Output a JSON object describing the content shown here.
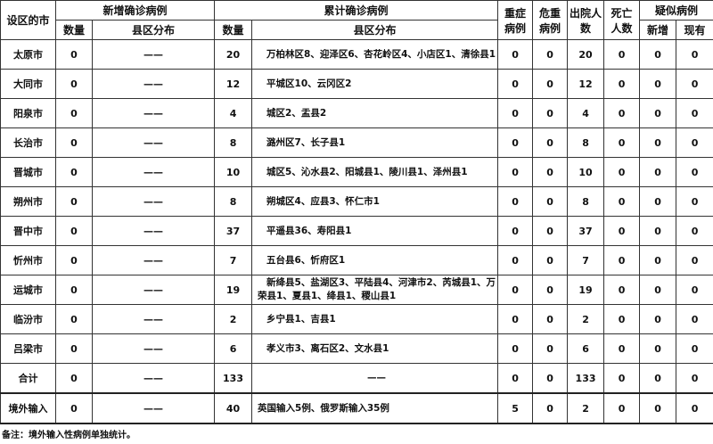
{
  "headers": {
    "city": "设区的市",
    "new_confirmed": "新增确诊病例",
    "cumulative_confirmed": "累计确诊病例",
    "count": "数量",
    "distribution": "县区分布",
    "severe": "重症病例",
    "critical": "危重病例",
    "discharged": "出院人数",
    "deaths": "死亡人数",
    "suspected": "疑似病例",
    "suspected_new": "新增",
    "suspected_current": "现有"
  },
  "rows": [
    {
      "city": "太原市",
      "new": "0",
      "new_dist": "——",
      "total": "20",
      "total_dist": "万柏林区8、迎泽区6、杏花岭区4、小店区1、清徐县1",
      "severe": "0",
      "critical": "0",
      "discharged": "20",
      "deaths": "0",
      "susp_new": "0",
      "susp_cur": "0"
    },
    {
      "city": "大同市",
      "new": "0",
      "new_dist": "——",
      "total": "12",
      "total_dist": "平城区10、云冈区2",
      "severe": "0",
      "critical": "0",
      "discharged": "12",
      "deaths": "0",
      "susp_new": "0",
      "susp_cur": "0"
    },
    {
      "city": "阳泉市",
      "new": "0",
      "new_dist": "——",
      "total": "4",
      "total_dist": "城区2、盂县2",
      "severe": "0",
      "critical": "0",
      "discharged": "4",
      "deaths": "0",
      "susp_new": "0",
      "susp_cur": "0"
    },
    {
      "city": "长治市",
      "new": "0",
      "new_dist": "——",
      "total": "8",
      "total_dist": "潞州区7、长子县1",
      "severe": "0",
      "critical": "0",
      "discharged": "8",
      "deaths": "0",
      "susp_new": "0",
      "susp_cur": "0"
    },
    {
      "city": "晋城市",
      "new": "0",
      "new_dist": "——",
      "total": "10",
      "total_dist": "城区5、沁水县2、阳城县1、陵川县1、泽州县1",
      "severe": "0",
      "critical": "0",
      "discharged": "10",
      "deaths": "0",
      "susp_new": "0",
      "susp_cur": "0"
    },
    {
      "city": "朔州市",
      "new": "0",
      "new_dist": "——",
      "total": "8",
      "total_dist": "朔城区4、应县3、怀仁市1",
      "severe": "0",
      "critical": "0",
      "discharged": "8",
      "deaths": "0",
      "susp_new": "0",
      "susp_cur": "0"
    },
    {
      "city": "晋中市",
      "new": "0",
      "new_dist": "——",
      "total": "37",
      "total_dist": "平遥县36、寿阳县1",
      "severe": "0",
      "critical": "0",
      "discharged": "37",
      "deaths": "0",
      "susp_new": "0",
      "susp_cur": "0"
    },
    {
      "city": "忻州市",
      "new": "0",
      "new_dist": "——",
      "total": "7",
      "total_dist": "五台县6、忻府区1",
      "severe": "0",
      "critical": "0",
      "discharged": "7",
      "deaths": "0",
      "susp_new": "0",
      "susp_cur": "0"
    },
    {
      "city": "运城市",
      "new": "0",
      "new_dist": "——",
      "total": "19",
      "total_dist": "新绛县5、盐湖区3、平陆县4、河津市2、芮城县1、万荣县1、夏县1、绛县1、稷山县1",
      "severe": "0",
      "critical": "0",
      "discharged": "19",
      "deaths": "0",
      "susp_new": "0",
      "susp_cur": "0"
    },
    {
      "city": "临汾市",
      "new": "0",
      "new_dist": "——",
      "total": "2",
      "total_dist": "乡宁县1、吉县1",
      "severe": "0",
      "critical": "0",
      "discharged": "2",
      "deaths": "0",
      "susp_new": "0",
      "susp_cur": "0"
    },
    {
      "city": "吕梁市",
      "new": "0",
      "new_dist": "——",
      "total": "6",
      "total_dist": "孝义市3、离石区2、文水县1",
      "severe": "0",
      "critical": "0",
      "discharged": "6",
      "deaths": "0",
      "susp_new": "0",
      "susp_cur": "0"
    },
    {
      "city": "合计",
      "new": "0",
      "new_dist": "——",
      "total": "133",
      "total_dist": "——",
      "severe": "0",
      "critical": "0",
      "discharged": "133",
      "deaths": "0",
      "susp_new": "0",
      "susp_cur": "0"
    },
    {
      "city": "境外输入",
      "new": "0",
      "new_dist": "——",
      "total": "40",
      "total_dist": "英国输入5例、俄罗斯输入35例",
      "severe": "5",
      "critical": "0",
      "discharged": "2",
      "deaths": "0",
      "susp_new": "0",
      "susp_cur": "0"
    }
  ],
  "note": "备注：境外输入性病例单独统计。"
}
